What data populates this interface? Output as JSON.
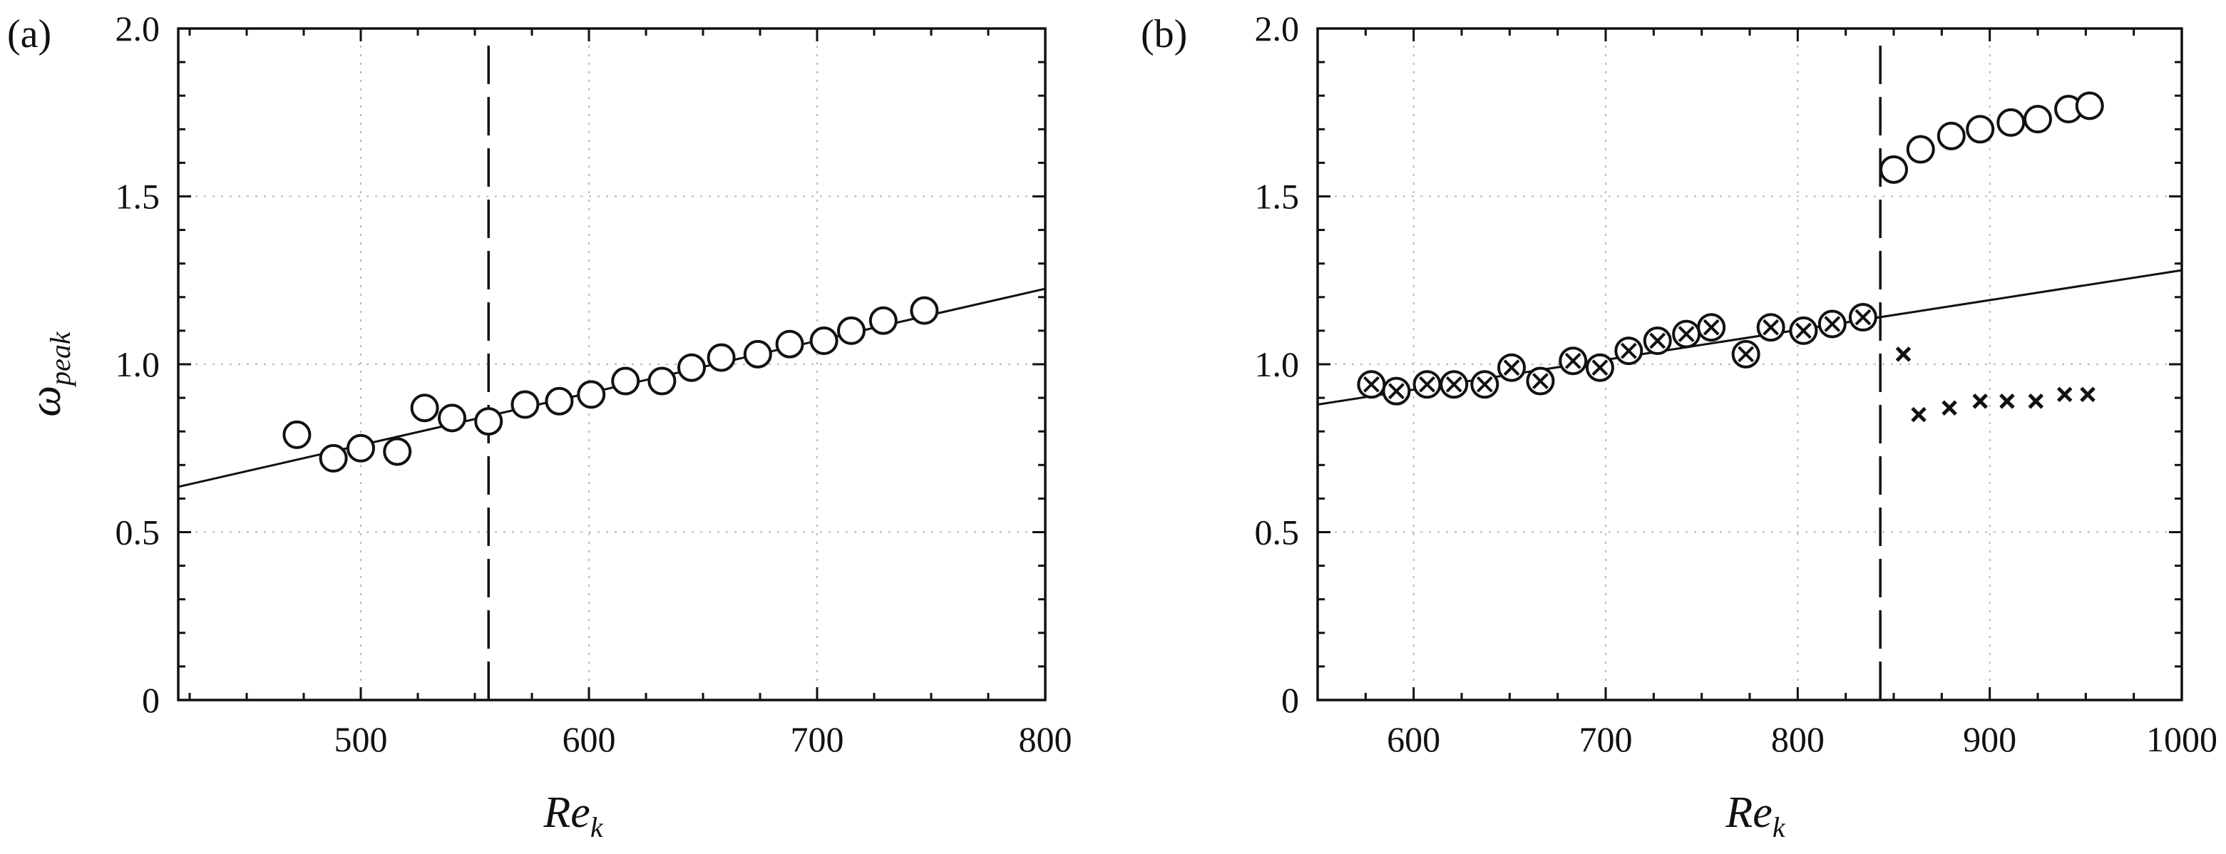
{
  "chart_data": [
    {
      "type": "scatter",
      "panel_label": "(a)",
      "title": "",
      "xlabel": "Re",
      "xlabel_sub": "k",
      "ylabel": "ω",
      "ylabel_sub": "peak",
      "xlim": [
        420,
        800
      ],
      "ylim": [
        0,
        2.0
      ],
      "xticks": [
        500,
        600,
        700,
        800
      ],
      "xtick_labels": [
        "500",
        "600",
        "700",
        "800"
      ],
      "yticks": [
        0,
        0.5,
        1.0,
        1.5,
        2.0
      ],
      "ytick_labels": [
        "0",
        "0.5",
        "1.0",
        "1.5",
        "2.0"
      ],
      "grid": true,
      "legend": "none",
      "vline_dashed_x": 556,
      "fit_line": {
        "x": [
          420,
          800
        ],
        "y": [
          0.635,
          1.225
        ]
      },
      "series": [
        {
          "marker": "circle",
          "x": [
            472,
            488,
            500,
            516,
            528,
            540,
            556,
            572,
            587,
            601,
            616,
            632,
            645,
            658,
            674,
            688,
            703,
            715,
            729,
            747
          ],
          "y": [
            0.79,
            0.72,
            0.75,
            0.74,
            0.87,
            0.84,
            0.83,
            0.88,
            0.89,
            0.91,
            0.95,
            0.95,
            0.99,
            1.02,
            1.03,
            1.06,
            1.07,
            1.1,
            1.13,
            1.16
          ]
        }
      ]
    },
    {
      "type": "scatter",
      "panel_label": "(b)",
      "title": "",
      "xlabel": "Re",
      "xlabel_sub": "k",
      "ylabel": "",
      "ylabel_sub": "",
      "xlim": [
        550,
        1000
      ],
      "ylim": [
        0,
        2.0
      ],
      "xticks": [
        600,
        700,
        800,
        900,
        1000
      ],
      "xtick_labels": [
        "600",
        "700",
        "800",
        "900",
        "1000"
      ],
      "yticks": [
        0,
        0.5,
        1.0,
        1.5,
        2.0
      ],
      "ytick_labels": [
        "0",
        "0.5",
        "1.0",
        "1.5",
        "2.0"
      ],
      "grid": true,
      "legend": "none",
      "vline_dashed_x": 843,
      "fit_line": {
        "x": [
          550,
          1000
        ],
        "y": [
          0.88,
          1.28
        ]
      },
      "series": [
        {
          "marker": "circle-cross",
          "x": [
            578,
            591,
            607,
            621,
            637,
            651,
            666,
            683,
            697,
            712,
            727,
            742,
            755,
            773,
            786,
            803,
            818,
            834
          ],
          "y": [
            0.94,
            0.92,
            0.94,
            0.94,
            0.94,
            0.99,
            0.95,
            1.01,
            0.99,
            1.04,
            1.07,
            1.09,
            1.11,
            1.03,
            1.11,
            1.1,
            1.12,
            1.14
          ]
        },
        {
          "marker": "circle",
          "x": [
            850,
            864,
            880,
            895,
            911,
            925,
            941,
            952
          ],
          "y": [
            1.58,
            1.64,
            1.68,
            1.7,
            1.72,
            1.73,
            1.76,
            1.77
          ]
        },
        {
          "marker": "cross",
          "x": [
            855,
            863,
            879,
            895,
            909,
            924,
            939,
            951
          ],
          "y": [
            1.03,
            0.85,
            0.87,
            0.89,
            0.89,
            0.89,
            0.91,
            0.91
          ]
        }
      ]
    }
  ]
}
